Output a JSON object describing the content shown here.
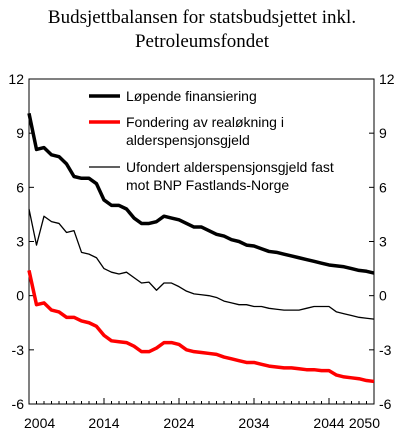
{
  "chart_data": {
    "type": "line",
    "title_line1": "Budsjettbalansen for statsbudsjettet inkl.",
    "title_line2": "Petroleumsfondet",
    "xlabel": "",
    "ylabel": "",
    "xlim": [
      2004,
      2050
    ],
    "ylim": [
      -6,
      12
    ],
    "x_ticks": [
      2004,
      2014,
      2024,
      2034,
      2044,
      2050
    ],
    "y_ticks": [
      -6,
      -3,
      0,
      3,
      6,
      9,
      12
    ],
    "grid": false,
    "legend_position": "top-right",
    "series": [
      {
        "name": "Løpende finansiering",
        "color": "#000000",
        "width": "thick",
        "points": [
          [
            2004,
            10.1
          ],
          [
            2005,
            8.1
          ],
          [
            2006,
            8.2
          ],
          [
            2007,
            7.8
          ],
          [
            2008,
            7.7
          ],
          [
            2009,
            7.3
          ],
          [
            2010,
            6.6
          ],
          [
            2011,
            6.5
          ],
          [
            2012,
            6.5
          ],
          [
            2013,
            6.2
          ],
          [
            2014,
            5.3
          ],
          [
            2015,
            5.0
          ],
          [
            2016,
            5.0
          ],
          [
            2017,
            4.8
          ],
          [
            2018,
            4.3
          ],
          [
            2019,
            4.0
          ],
          [
            2020,
            4.0
          ],
          [
            2021,
            4.1
          ],
          [
            2022,
            4.4
          ],
          [
            2023,
            4.3
          ],
          [
            2024,
            4.2
          ],
          [
            2025,
            4.0
          ],
          [
            2026,
            3.8
          ],
          [
            2027,
            3.8
          ],
          [
            2028,
            3.6
          ],
          [
            2029,
            3.4
          ],
          [
            2030,
            3.3
          ],
          [
            2031,
            3.1
          ],
          [
            2032,
            3.0
          ],
          [
            2033,
            2.8
          ],
          [
            2034,
            2.75
          ],
          [
            2035,
            2.6
          ],
          [
            2036,
            2.45
          ],
          [
            2037,
            2.4
          ],
          [
            2038,
            2.3
          ],
          [
            2039,
            2.2
          ],
          [
            2040,
            2.1
          ],
          [
            2041,
            2.0
          ],
          [
            2042,
            1.9
          ],
          [
            2043,
            1.8
          ],
          [
            2044,
            1.7
          ],
          [
            2045,
            1.65
          ],
          [
            2046,
            1.6
          ],
          [
            2047,
            1.5
          ],
          [
            2048,
            1.4
          ],
          [
            2049,
            1.35
          ],
          [
            2050,
            1.25
          ]
        ]
      },
      {
        "name": "Fondering av realøkning i alderspensjonsgjeld",
        "color": "#ff0000",
        "width": "thick",
        "points": [
          [
            2004,
            1.4
          ],
          [
            2005,
            -0.5
          ],
          [
            2006,
            -0.4
          ],
          [
            2007,
            -0.8
          ],
          [
            2008,
            -0.9
          ],
          [
            2009,
            -1.2
          ],
          [
            2010,
            -1.2
          ],
          [
            2011,
            -1.4
          ],
          [
            2012,
            -1.5
          ],
          [
            2013,
            -1.7
          ],
          [
            2014,
            -2.2
          ],
          [
            2015,
            -2.5
          ],
          [
            2016,
            -2.55
          ],
          [
            2017,
            -2.6
          ],
          [
            2018,
            -2.8
          ],
          [
            2019,
            -3.1
          ],
          [
            2020,
            -3.1
          ],
          [
            2021,
            -2.9
          ],
          [
            2022,
            -2.6
          ],
          [
            2023,
            -2.6
          ],
          [
            2024,
            -2.7
          ],
          [
            2025,
            -3.0
          ],
          [
            2026,
            -3.1
          ],
          [
            2027,
            -3.15
          ],
          [
            2028,
            -3.2
          ],
          [
            2029,
            -3.25
          ],
          [
            2030,
            -3.4
          ],
          [
            2031,
            -3.5
          ],
          [
            2032,
            -3.6
          ],
          [
            2033,
            -3.7
          ],
          [
            2034,
            -3.7
          ],
          [
            2035,
            -3.8
          ],
          [
            2036,
            -3.9
          ],
          [
            2037,
            -3.95
          ],
          [
            2038,
            -4.0
          ],
          [
            2039,
            -4.0
          ],
          [
            2040,
            -4.05
          ],
          [
            2041,
            -4.1
          ],
          [
            2042,
            -4.1
          ],
          [
            2043,
            -4.15
          ],
          [
            2044,
            -4.15
          ],
          [
            2045,
            -4.4
          ],
          [
            2046,
            -4.5
          ],
          [
            2047,
            -4.55
          ],
          [
            2048,
            -4.6
          ],
          [
            2049,
            -4.7
          ],
          [
            2050,
            -4.75
          ]
        ]
      },
      {
        "name": "Ufondert alderspensjonsgjeld fast mot BNP Fastlands-Norge",
        "color": "#000000",
        "width": "thin",
        "points": [
          [
            2004,
            4.8
          ],
          [
            2005,
            2.8
          ],
          [
            2006,
            4.4
          ],
          [
            2007,
            4.1
          ],
          [
            2008,
            4.0
          ],
          [
            2009,
            3.5
          ],
          [
            2010,
            3.6
          ],
          [
            2011,
            2.4
          ],
          [
            2012,
            2.3
          ],
          [
            2013,
            2.1
          ],
          [
            2014,
            1.5
          ],
          [
            2015,
            1.3
          ],
          [
            2016,
            1.2
          ],
          [
            2017,
            1.3
          ],
          [
            2018,
            1.0
          ],
          [
            2019,
            0.7
          ],
          [
            2020,
            0.75
          ],
          [
            2021,
            0.3
          ],
          [
            2022,
            0.7
          ],
          [
            2023,
            0.7
          ],
          [
            2024,
            0.5
          ],
          [
            2025,
            0.25
          ],
          [
            2026,
            0.1
          ],
          [
            2027,
            0.05
          ],
          [
            2028,
            0.0
          ],
          [
            2029,
            -0.1
          ],
          [
            2030,
            -0.3
          ],
          [
            2031,
            -0.4
          ],
          [
            2032,
            -0.5
          ],
          [
            2033,
            -0.5
          ],
          [
            2034,
            -0.6
          ],
          [
            2035,
            -0.6
          ],
          [
            2036,
            -0.7
          ],
          [
            2037,
            -0.75
          ],
          [
            2038,
            -0.8
          ],
          [
            2039,
            -0.8
          ],
          [
            2040,
            -0.8
          ],
          [
            2041,
            -0.7
          ],
          [
            2042,
            -0.6
          ],
          [
            2043,
            -0.6
          ],
          [
            2044,
            -0.6
          ],
          [
            2045,
            -0.9
          ],
          [
            2046,
            -1.0
          ],
          [
            2047,
            -1.1
          ],
          [
            2048,
            -1.2
          ],
          [
            2049,
            -1.25
          ],
          [
            2050,
            -1.3
          ]
        ]
      }
    ],
    "legend": [
      {
        "line1": "Løpende finansiering",
        "line2": ""
      },
      {
        "line1": "Fondering av realøkning i",
        "line2": "alderspensjonsgjeld"
      },
      {
        "line1": "Ufondert alderspensjonsgjeld fast",
        "line2": "mot BNP Fastlands-Norge"
      }
    ]
  }
}
